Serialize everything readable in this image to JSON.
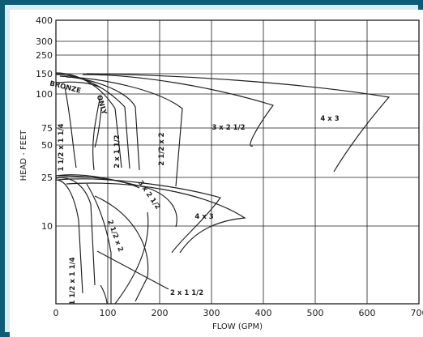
{
  "chart_data": {
    "type": "area",
    "title": "",
    "xlabel": "FLOW (GPM)",
    "ylabel": "HEAD - FEET",
    "x_ticks": [
      "0",
      "100",
      "200",
      "300",
      "400",
      "500",
      "600",
      "700"
    ],
    "y_ticks": [
      "10",
      "25",
      "50",
      "75",
      "100",
      "150",
      "250",
      "300",
      "400"
    ],
    "xlim": [
      0,
      700
    ],
    "ylim": [
      0,
      400
    ],
    "y_scale": "log",
    "grid": true,
    "regions": [
      {
        "label": "BRONZE",
        "flow_range": [
          0,
          55
        ],
        "head_range": [
          100,
          150
        ]
      },
      {
        "label": "ONLY",
        "flow_range": [
          40,
          80
        ],
        "head_range": [
          65,
          110
        ]
      },
      {
        "label": "1 1/2 x 1 1/4",
        "flow_range": [
          0,
          70
        ],
        "head_range": [
          30,
          150
        ]
      },
      {
        "label": "2 x 1 1/2",
        "flow_range": [
          40,
          140
        ],
        "head_range": [
          30,
          150
        ]
      },
      {
        "label": "2 1/2 x 2",
        "flow_range": [
          70,
          235
        ],
        "head_range": [
          30,
          150
        ]
      },
      {
        "label": "3 x 2 1/2",
        "flow_range": [
          100,
          410
        ],
        "head_range": [
          35,
          150
        ]
      },
      {
        "label": "4 x 3",
        "flow_range": [
          80,
          630
        ],
        "head_range": [
          40,
          150
        ]
      },
      {
        "label": "1 1/2 x 1 1/4",
        "flow_range": [
          0,
          75
        ],
        "head_range": [
          5,
          25
        ]
      },
      {
        "label": "2 1/2 x 2",
        "flow_range": [
          60,
          170
        ],
        "head_range": [
          5,
          25
        ]
      },
      {
        "label": "3 x 2 1/2",
        "flow_range": [
          100,
          230
        ],
        "head_range": [
          6,
          25
        ]
      },
      {
        "label": "4 x 3",
        "flow_range": [
          150,
          350
        ],
        "head_range": [
          8,
          25
        ]
      }
    ],
    "annotations": [
      {
        "text": "2 x 1 1/2",
        "points_to": [
          60,
          8
        ]
      }
    ]
  }
}
